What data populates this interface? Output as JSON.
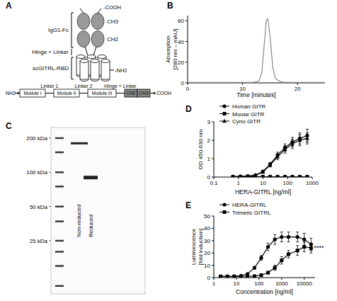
{
  "chart_data": [
    {
      "panel": "B",
      "type": "line",
      "x_label": "Time [minutes]",
      "y_label": "Absorption [280 nm – mAU]",
      "x": [
        0,
        2,
        4,
        6,
        8,
        10,
        11,
        12,
        13,
        13.5,
        14,
        14.3,
        14.6,
        15,
        15.5,
        16,
        17,
        18,
        20,
        22,
        24,
        25
      ],
      "values": [
        0.5,
        0.5,
        0.5,
        0.5,
        0.5,
        0.5,
        0.5,
        0.5,
        2,
        10,
        40,
        60,
        62,
        45,
        15,
        4,
        1,
        0.5,
        0.5,
        0.5,
        0.5,
        0.5
      ],
      "color": "#888888",
      "xlim": [
        0,
        25
      ],
      "xticks": [
        0,
        10,
        20
      ],
      "ylim": [
        0,
        65
      ],
      "yticks": [
        0,
        20,
        40,
        60
      ]
    },
    {
      "panel": "D",
      "type": "line",
      "x_label": "HERA-GITRL [ng/ml]",
      "y_label": "OD 450-630 nm",
      "log": "x",
      "x": [
        0.6,
        1.2,
        2.4,
        4.9,
        9.8,
        19.5,
        39,
        78,
        156,
        313,
        625
      ],
      "series": [
        {
          "name": "Human GITR",
          "color": "#000000",
          "marker": "circle",
          "values": [
            0.02,
            0.03,
            0.05,
            0.1,
            0.3,
            0.7,
            1.2,
            1.6,
            1.9,
            2.1,
            2.25
          ],
          "errors": [
            0.01,
            0.01,
            0.02,
            0.03,
            0.05,
            0.1,
            0.15,
            0.2,
            0.25,
            0.3,
            0.35
          ]
        },
        {
          "name": "Mouse GITR",
          "color": "#000000",
          "marker": "square",
          "values": [
            0.02,
            0.02,
            0.02,
            0.02,
            0.02,
            0.02,
            0.02,
            0.02,
            0.02,
            0.02,
            0.02
          ],
          "errors": [
            0.01,
            0.01,
            0.01,
            0.01,
            0.01,
            0.01,
            0.01,
            0.01,
            0.01,
            0.01,
            0.01
          ]
        },
        {
          "name": "Cyno GITR",
          "color": "#000000",
          "marker": "triangle",
          "values": [
            0.02,
            0.03,
            0.04,
            0.09,
            0.27,
            0.65,
            1.1,
            1.5,
            1.8,
            2.0,
            2.1
          ],
          "errors": [
            0.01,
            0.01,
            0.02,
            0.03,
            0.05,
            0.1,
            0.15,
            0.2,
            0.25,
            0.3,
            0.3
          ]
        }
      ],
      "xlim": [
        0.1,
        1000
      ],
      "xticks": [
        0.1,
        1,
        10,
        100,
        1000
      ],
      "ylim": [
        0,
        3
      ],
      "yticks": [
        0,
        1,
        2,
        3
      ],
      "legend": "upper left"
    },
    {
      "panel": "E",
      "type": "line",
      "x_label": "Concentration [ng/ml]",
      "y_label": "Luminescence [fold induction]",
      "log": "x",
      "x": [
        2,
        4,
        8,
        16,
        31,
        63,
        125,
        250,
        500,
        1000,
        2000,
        5000,
        10000,
        20000
      ],
      "series": [
        {
          "name": "HERA-GITRL",
          "color": "#000000",
          "marker": "circle",
          "values": [
            1,
            1,
            1.1,
            1.5,
            3,
            8,
            16,
            25,
            31,
            33,
            33,
            33,
            31,
            27
          ],
          "errors": [
            0.1,
            0.1,
            0.1,
            0.2,
            0.4,
            1,
            2,
            3,
            4,
            4,
            4,
            4,
            5,
            5
          ]
        },
        {
          "name": "Trimeric GITRL",
          "color": "#000000",
          "marker": "square",
          "values": [
            1,
            1,
            1,
            1,
            1,
            1.2,
            2,
            4,
            8,
            14,
            19,
            22,
            25,
            24
          ],
          "errors": [
            0.1,
            0.1,
            0.1,
            0.1,
            0.1,
            0.2,
            0.4,
            1,
            2,
            3,
            3,
            4,
            4,
            4
          ]
        }
      ],
      "xlim": [
        1,
        30000
      ],
      "xticks": [
        1,
        10,
        100,
        1000,
        10000
      ],
      "ylim": [
        0,
        50
      ],
      "yticks": [
        0,
        10,
        20,
        30,
        40,
        50
      ],
      "legend": "upper left",
      "annotations": [
        {
          "text": "****",
          "x": 20000,
          "y": 25
        }
      ]
    }
  ],
  "diagram": {
    "panel": "A",
    "fc_label": "IgG1-Fc",
    "ch3": "CH3",
    "ch2": "CH2",
    "hinge": "Hinge + Linker",
    "rbd": "scGITRL-RBD",
    "cooh": "-COOH",
    "nh2": "-NH2",
    "construct": {
      "start": "NH2",
      "modules": [
        "Module I",
        "Module II",
        "Module III"
      ],
      "linkers": [
        "Linker 1",
        "Linker 2",
        "Hinge + Linker"
      ],
      "domains": [
        "CH2",
        "CH3"
      ],
      "end": "COOH"
    }
  },
  "gel": {
    "panel": "C",
    "markers": [
      {
        "value": 200,
        "label": "200 kDa"
      },
      {
        "value": 100,
        "label": "100 kDa"
      },
      {
        "value": 50,
        "label": "50 kDa"
      },
      {
        "value": 25,
        "label": "25 kDa"
      }
    ],
    "ladder_kda": [
      200,
      150,
      100,
      75,
      50,
      37,
      25,
      20,
      15,
      10
    ],
    "lanes": [
      {
        "label": "Non-reduced",
        "band_kda": 180
      },
      {
        "label": "Reduced",
        "band_kda": 90
      }
    ]
  }
}
